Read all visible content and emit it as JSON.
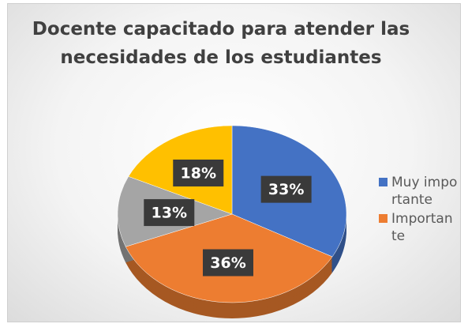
{
  "chart_data": {
    "type": "pie",
    "title": "Docente capacitado para atender las necesidades de los estudiantes",
    "categories": [
      "Muy importante",
      "Importante",
      null,
      null
    ],
    "values": [
      33,
      36,
      13,
      18
    ],
    "value_labels": [
      "33%",
      "36%",
      "13%",
      "18%"
    ],
    "colors": [
      "#4472c4",
      "#ed7d31",
      "#a5a5a5",
      "#ffc000"
    ]
  }
}
